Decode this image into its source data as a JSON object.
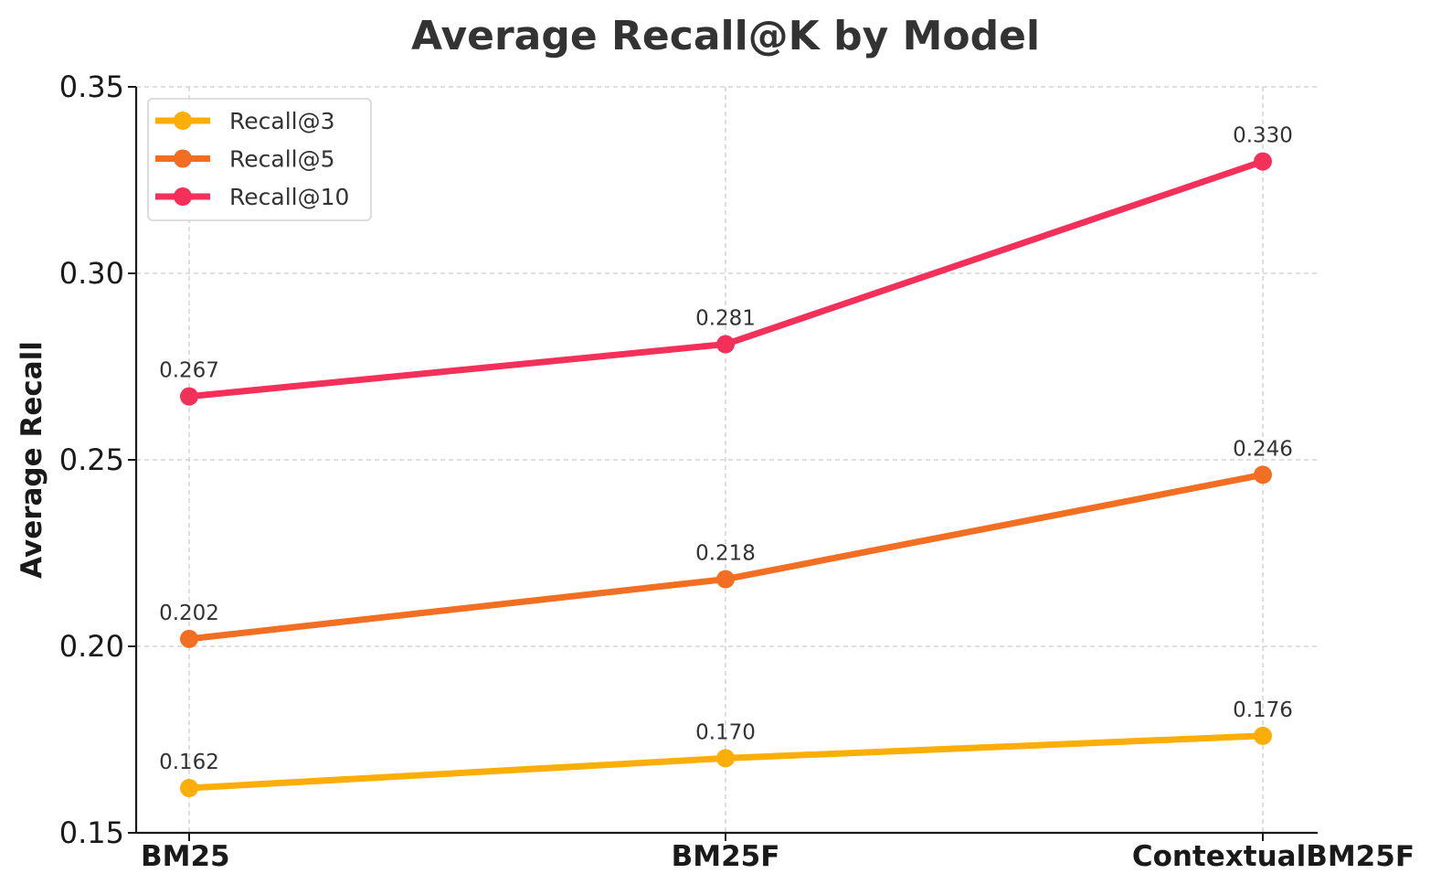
{
  "chart_data": {
    "type": "line",
    "title": "Average Recall@K by Model",
    "xlabel": "",
    "ylabel": "Average Recall",
    "categories": [
      "BM25",
      "BM25F",
      "ContextualBM25F"
    ],
    "ylim": [
      0.15,
      0.35
    ],
    "yticks": [
      0.15,
      0.2,
      0.25,
      0.3,
      0.35
    ],
    "ytick_labels": [
      "0.15",
      "0.20",
      "0.25",
      "0.30",
      "0.35"
    ],
    "grid": true,
    "legend_position": "top-left",
    "series": [
      {
        "name": "Recall@3",
        "color": "#FBAE07",
        "values": [
          0.162,
          0.17,
          0.176
        ],
        "labels": [
          "0.162",
          "0.170",
          "0.176"
        ]
      },
      {
        "name": "Recall@5",
        "color": "#F26E22",
        "values": [
          0.202,
          0.218,
          0.246
        ],
        "labels": [
          "0.202",
          "0.218",
          "0.246"
        ]
      },
      {
        "name": "Recall@10",
        "color": "#F2305A",
        "values": [
          0.267,
          0.281,
          0.33
        ],
        "labels": [
          "0.267",
          "0.281",
          "0.330"
        ]
      }
    ]
  }
}
